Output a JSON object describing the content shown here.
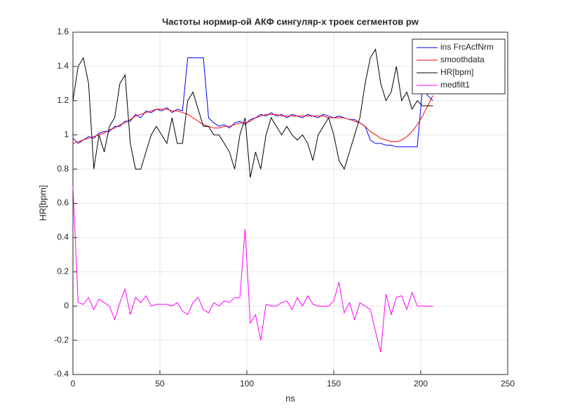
{
  "chart_data": {
    "type": "line",
    "title": "Частоты нормир-ой АКФ сингуляр-х троек сегментов pw",
    "xlabel": "ns",
    "ylabel": "HR[bpm]",
    "xlim": [
      0,
      250
    ],
    "xticks": [
      0,
      50,
      100,
      150,
      200,
      250
    ],
    "ylim": [
      -0.4,
      1.6
    ],
    "yticks": [
      -0.4,
      -0.2,
      0,
      0.2,
      0.4,
      0.6,
      0.8,
      1,
      1.2,
      1.4,
      1.6
    ],
    "grid": true,
    "legend": "top-right",
    "x": [
      0,
      3,
      6,
      9,
      12,
      15,
      18,
      21,
      24,
      27,
      30,
      33,
      36,
      39,
      42,
      45,
      48,
      51,
      54,
      57,
      60,
      63,
      66,
      69,
      72,
      75,
      78,
      81,
      84,
      87,
      90,
      93,
      96,
      99,
      102,
      105,
      108,
      111,
      114,
      117,
      120,
      123,
      126,
      129,
      132,
      135,
      138,
      141,
      144,
      147,
      150,
      153,
      156,
      159,
      162,
      165,
      168,
      171,
      174,
      177,
      180,
      183,
      186,
      189,
      192,
      195,
      198,
      201,
      204,
      207
    ],
    "series": [
      {
        "name": "ins FrcAcfNrm",
        "color": "#0000ff",
        "values": [
          0.98,
          0.95,
          0.97,
          0.99,
          0.98,
          1.01,
          1.02,
          1.02,
          1.05,
          1.05,
          1.08,
          1.08,
          1.12,
          1.1,
          1.14,
          1.13,
          1.15,
          1.14,
          1.16,
          1.13,
          1.15,
          1.14,
          1.45,
          1.45,
          1.45,
          1.45,
          1.1,
          1.07,
          1.05,
          1.06,
          1.04,
          1.07,
          1.08,
          1.06,
          1.09,
          1.1,
          1.12,
          1.11,
          1.13,
          1.11,
          1.12,
          1.1,
          1.12,
          1.11,
          1.1,
          1.12,
          1.11,
          1.1,
          1.12,
          1.11,
          1.1,
          1.11,
          1.1,
          1.09,
          1.09,
          1.07,
          1.05,
          0.97,
          0.95,
          0.95,
          0.94,
          0.94,
          0.93,
          0.93,
          0.93,
          0.93,
          0.93,
          1.27,
          1.23,
          1.2
        ]
      },
      {
        "name": "smoothdata",
        "color": "#ff0000",
        "values": [
          0.95,
          0.96,
          0.97,
          0.98,
          0.99,
          1.0,
          1.01,
          1.03,
          1.04,
          1.06,
          1.07,
          1.09,
          1.11,
          1.12,
          1.13,
          1.14,
          1.15,
          1.15,
          1.15,
          1.14,
          1.14,
          1.13,
          1.12,
          1.1,
          1.08,
          1.06,
          1.05,
          1.04,
          1.04,
          1.05,
          1.05,
          1.06,
          1.07,
          1.07,
          1.08,
          1.1,
          1.11,
          1.12,
          1.12,
          1.12,
          1.11,
          1.11,
          1.11,
          1.11,
          1.11,
          1.11,
          1.11,
          1.11,
          1.11,
          1.1,
          1.1,
          1.1,
          1.1,
          1.09,
          1.08,
          1.07,
          1.05,
          1.02,
          1.0,
          0.98,
          0.97,
          0.96,
          0.96,
          0.97,
          0.99,
          1.02,
          1.06,
          1.11,
          1.17,
          1.23
        ]
      },
      {
        "name": "HR[bpm]",
        "color": "#000000",
        "values": [
          1.2,
          1.4,
          1.45,
          1.3,
          0.8,
          1.0,
          0.9,
          1.05,
          1.1,
          1.3,
          1.35,
          0.95,
          0.8,
          0.8,
          0.9,
          1.0,
          1.05,
          1.0,
          0.95,
          1.1,
          0.95,
          0.95,
          1.2,
          1.25,
          1.15,
          1.05,
          1.05,
          1.0,
          1.0,
          0.95,
          0.9,
          0.8,
          1.0,
          1.1,
          0.75,
          0.9,
          0.8,
          1.0,
          1.1,
          1.05,
          1.0,
          1.05,
          1.0,
          0.97,
          1.0,
          0.95,
          0.85,
          1.0,
          1.05,
          1.1,
          1.0,
          0.85,
          0.8,
          0.9,
          1.0,
          1.1,
          1.3,
          1.45,
          1.5,
          1.3,
          1.2,
          1.25,
          1.4,
          1.2,
          1.25,
          1.15,
          1.2,
          1.17,
          1.17,
          1.17
        ]
      },
      {
        "name": "medfilt1",
        "color": "#ff00ff",
        "values": [
          0.7,
          0.02,
          0.01,
          0.05,
          -0.02,
          0.04,
          0.02,
          0.0,
          -0.08,
          0.02,
          0.1,
          -0.05,
          0.05,
          0.02,
          0.06,
          0.0,
          0.01,
          0.01,
          0.01,
          0.0,
          0.02,
          -0.03,
          -0.05,
          0.02,
          0.05,
          -0.02,
          -0.04,
          0.02,
          0.0,
          0.03,
          0.02,
          0.05,
          0.05,
          0.45,
          -0.1,
          -0.05,
          -0.2,
          0.01,
          0.0,
          0.0,
          0.02,
          0.03,
          -0.02,
          0.05,
          0.0,
          0.06,
          0.01,
          0.0,
          0.0,
          0.0,
          0.03,
          0.14,
          -0.04,
          0.02,
          -0.08,
          0.02,
          0.0,
          -0.02,
          -0.15,
          -0.27,
          0.07,
          -0.05,
          0.05,
          0.06,
          -0.02,
          0.08,
          0.0,
          0.0,
          0.0,
          0.0
        ]
      }
    ]
  }
}
